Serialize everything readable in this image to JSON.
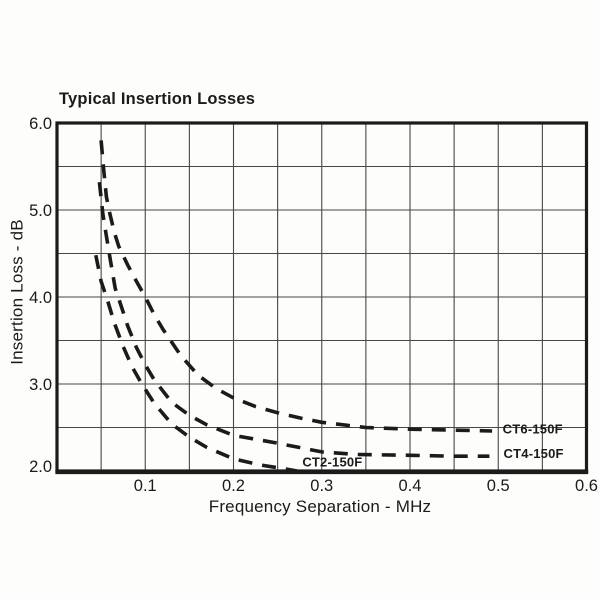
{
  "page": {
    "background": "#fdfdfc",
    "ink_color": "#1b1b1b",
    "grid_color": "#474747"
  },
  "chart_data": {
    "type": "line",
    "title": "Typical Insertion Losses",
    "xlabel": "Frequency Separation - MHz",
    "ylabel": "Insertion Loss - dB",
    "xlim": [
      0,
      0.6
    ],
    "ylim": [
      2.0,
      6.0
    ],
    "x_grid_step": 0.05,
    "y_grid_step": 0.5,
    "grid": true,
    "line_style": "dashed",
    "legend_position": "inline-right",
    "x_ticks": [
      0.1,
      0.2,
      0.3,
      0.4,
      0.5,
      0.6
    ],
    "x_tick_labels": [
      "0.1",
      "0.2",
      "0.3",
      "0.4",
      "0.5",
      "0.6"
    ],
    "y_ticks": [
      2.0,
      3.0,
      4.0,
      5.0,
      6.0
    ],
    "y_tick_labels": [
      "2.0",
      "3.0",
      "4.0",
      "5.0",
      "6.0"
    ],
    "series": [
      {
        "name": "CT6-150F",
        "label_pos": [
          0.505,
          2.47
        ],
        "points": [
          [
            0.05,
            5.8
          ],
          [
            0.053,
            5.45
          ],
          [
            0.056,
            5.15
          ],
          [
            0.06,
            4.95
          ],
          [
            0.065,
            4.74
          ],
          [
            0.07,
            4.58
          ],
          [
            0.08,
            4.37
          ],
          [
            0.09,
            4.18
          ],
          [
            0.1,
            4.0
          ],
          [
            0.11,
            3.8
          ],
          [
            0.12,
            3.63
          ],
          [
            0.14,
            3.33
          ],
          [
            0.16,
            3.1
          ],
          [
            0.18,
            2.95
          ],
          [
            0.2,
            2.84
          ],
          [
            0.225,
            2.74
          ],
          [
            0.25,
            2.67
          ],
          [
            0.275,
            2.61
          ],
          [
            0.3,
            2.56
          ],
          [
            0.35,
            2.5
          ],
          [
            0.4,
            2.48
          ],
          [
            0.45,
            2.47
          ],
          [
            0.493,
            2.46
          ]
        ]
      },
      {
        "name": "CT4-150F",
        "label_pos": [
          0.506,
          2.19
        ],
        "points": [
          [
            0.048,
            5.32
          ],
          [
            0.052,
            4.95
          ],
          [
            0.056,
            4.7
          ],
          [
            0.06,
            4.45
          ],
          [
            0.066,
            4.1
          ],
          [
            0.072,
            3.92
          ],
          [
            0.08,
            3.67
          ],
          [
            0.09,
            3.42
          ],
          [
            0.1,
            3.22
          ],
          [
            0.11,
            3.05
          ],
          [
            0.13,
            2.79
          ],
          [
            0.15,
            2.64
          ],
          [
            0.17,
            2.53
          ],
          [
            0.2,
            2.41
          ],
          [
            0.25,
            2.32
          ],
          [
            0.3,
            2.22
          ],
          [
            0.34,
            2.19
          ],
          [
            0.4,
            2.18
          ],
          [
            0.45,
            2.17
          ],
          [
            0.49,
            2.17
          ]
        ]
      },
      {
        "name": "CT2-150F",
        "label_pos": [
          0.278,
          2.09
        ],
        "points": [
          [
            0.044,
            4.48
          ],
          [
            0.05,
            4.18
          ],
          [
            0.057,
            3.97
          ],
          [
            0.065,
            3.7
          ],
          [
            0.075,
            3.43
          ],
          [
            0.085,
            3.2
          ],
          [
            0.095,
            3.02
          ],
          [
            0.11,
            2.78
          ],
          [
            0.13,
            2.54
          ],
          [
            0.15,
            2.39
          ],
          [
            0.17,
            2.27
          ],
          [
            0.2,
            2.14
          ],
          [
            0.23,
            2.07
          ],
          [
            0.255,
            2.03
          ],
          [
            0.272,
            2.0
          ]
        ]
      }
    ]
  }
}
